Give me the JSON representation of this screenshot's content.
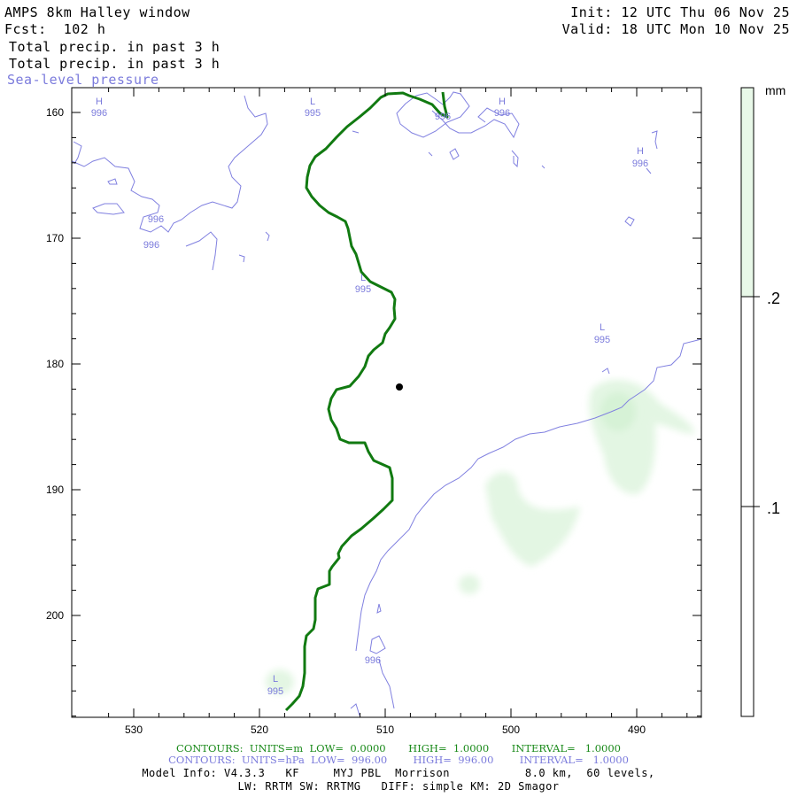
{
  "header": {
    "title": "AMPS 8km Halley window",
    "fcst": "Fcst:  102 h",
    "init": "Init: 12 UTC Thu 06 Nov 25",
    "valid": "Valid: 18 UTC Mon 10 Nov 25",
    "field1": "Total precip. in past 3 h",
    "field2": "Total precip. in past 3 h",
    "field3": "Sea-level pressure"
  },
  "colorbar": {
    "unit": "mm",
    "labels": [
      ".2",
      ".1"
    ],
    "fill_color": "#e8f8e8"
  },
  "map": {
    "y_ticks": [
      "160",
      "170",
      "180",
      "190",
      "200"
    ],
    "x_ticks": [
      "530",
      "520",
      "510",
      "500",
      "490"
    ],
    "pressure_labels": [
      {
        "sym": "H",
        "val": "996"
      },
      {
        "sym": "L",
        "val": "995"
      },
      {
        "sym": "",
        "val": "996"
      },
      {
        "sym": "H",
        "val": "996"
      },
      {
        "sym": "H",
        "val": "996"
      },
      {
        "sym": "",
        "val": "996"
      },
      {
        "sym": "",
        "val": "996"
      },
      {
        "sym": "L",
        "val": "995"
      },
      {
        "sym": "L",
        "val": "995"
      },
      {
        "sym": "",
        "val": "996"
      },
      {
        "sym": "L",
        "val": "995"
      }
    ],
    "colors": {
      "terrain": "#117a11",
      "slp": "#7b7bdc",
      "precip": "#e4f7e4"
    }
  },
  "footer": {
    "contours_green": "CONTOURS:  UNITS=m  LOW=  0.0000       HIGH=  1.0000       INTERVAL=   1.0000",
    "contours_blue": "CONTOURS:  UNITS=hPa  LOW=  996.00        HIGH=  996.00        INTERVAL=   1.0000",
    "model_info": "Model Info: V4.3.3   KF     MYJ PBL  Morrison           8.0 km,  60 levels,",
    "model_info2": "LW: RRTM SW: RRTMG   DIFF: simple KM: 2D Smagor"
  }
}
